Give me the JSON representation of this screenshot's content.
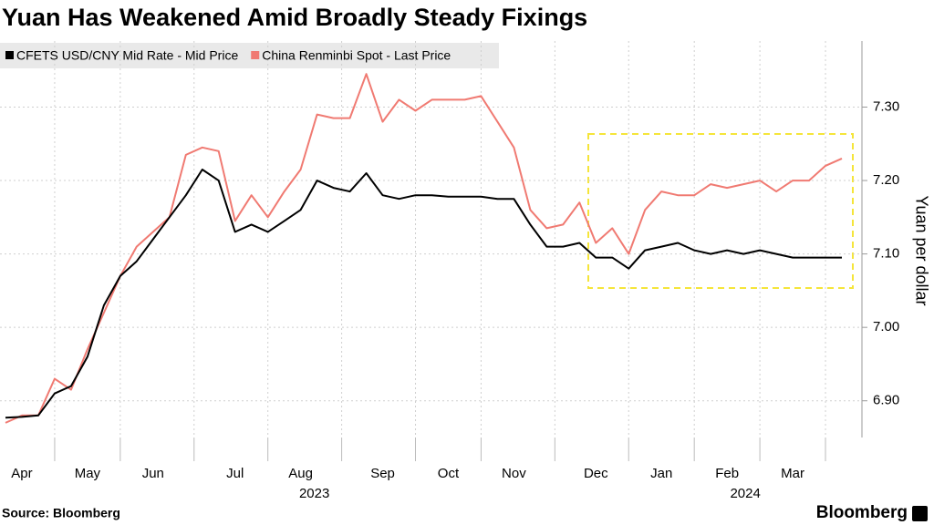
{
  "chart_data": {
    "type": "line",
    "title": "Yuan Has Weakened Amid Broadly Steady Fixings",
    "y_label": "Yuan per dollar",
    "source": "Source: Bloomberg",
    "logo": "Bloomberg",
    "categories": [
      null,
      "Apr",
      null,
      null,
      null,
      "May",
      null,
      null,
      null,
      "Jun",
      null,
      null,
      null,
      null,
      "Jul",
      null,
      null,
      null,
      "Aug",
      null,
      null,
      null,
      null,
      "Sep",
      null,
      null,
      null,
      "Oct",
      null,
      null,
      null,
      "Nov",
      null,
      null,
      null,
      null,
      "Dec",
      null,
      null,
      null,
      "Jan",
      null,
      null,
      null,
      "Feb",
      null,
      null,
      null,
      "Mar",
      null,
      null,
      null
    ],
    "year_labels": [
      {
        "label": "2023",
        "start": 0
      },
      {
        "label": "2024",
        "start": 38
      }
    ],
    "series": [
      {
        "name": "CFETS USD/CNY Mid Rate - Mid Price",
        "color": "#000000",
        "values": [
          6.877,
          6.878,
          6.88,
          6.91,
          6.92,
          6.96,
          7.03,
          7.07,
          7.09,
          7.12,
          7.15,
          7.18,
          7.215,
          7.2,
          7.13,
          7.14,
          7.13,
          7.145,
          7.16,
          7.2,
          7.19,
          7.185,
          7.21,
          7.18,
          7.175,
          7.18,
          7.18,
          7.178,
          7.178,
          7.178,
          7.175,
          7.175,
          7.14,
          7.11,
          7.11,
          7.115,
          7.095,
          7.095,
          7.08,
          7.105,
          7.11,
          7.115,
          7.105,
          7.1,
          7.105,
          7.1,
          7.105,
          7.1,
          7.095,
          7.095,
          7.095,
          7.095
        ]
      },
      {
        "name": "China Renminbi Spot - Last Price",
        "color": "#f07a72",
        "values": [
          6.87,
          6.88,
          6.88,
          6.93,
          6.915,
          6.97,
          7.02,
          7.07,
          7.11,
          7.13,
          7.15,
          7.235,
          7.245,
          7.24,
          7.145,
          7.18,
          7.15,
          7.185,
          7.215,
          7.29,
          7.285,
          7.285,
          7.345,
          7.28,
          7.31,
          7.295,
          7.31,
          7.31,
          7.31,
          7.315,
          7.28,
          7.245,
          7.16,
          7.135,
          7.14,
          7.17,
          7.115,
          7.135,
          7.1,
          7.16,
          7.185,
          7.18,
          7.18,
          7.195,
          7.19,
          7.195,
          7.2,
          7.185,
          7.2,
          7.2,
          7.22,
          7.23
        ]
      }
    ],
    "ylim": [
      6.85,
      7.39
    ],
    "yticks": [
      {
        "value": 6.9,
        "label": "6.90"
      },
      {
        "value": 7.0,
        "label": "7.00"
      },
      {
        "value": 7.1,
        "label": "7.10"
      },
      {
        "value": 7.2,
        "label": "7.20"
      },
      {
        "value": 7.3,
        "label": "7.30"
      }
    ],
    "y_axis_side": "right",
    "grid": true
  }
}
